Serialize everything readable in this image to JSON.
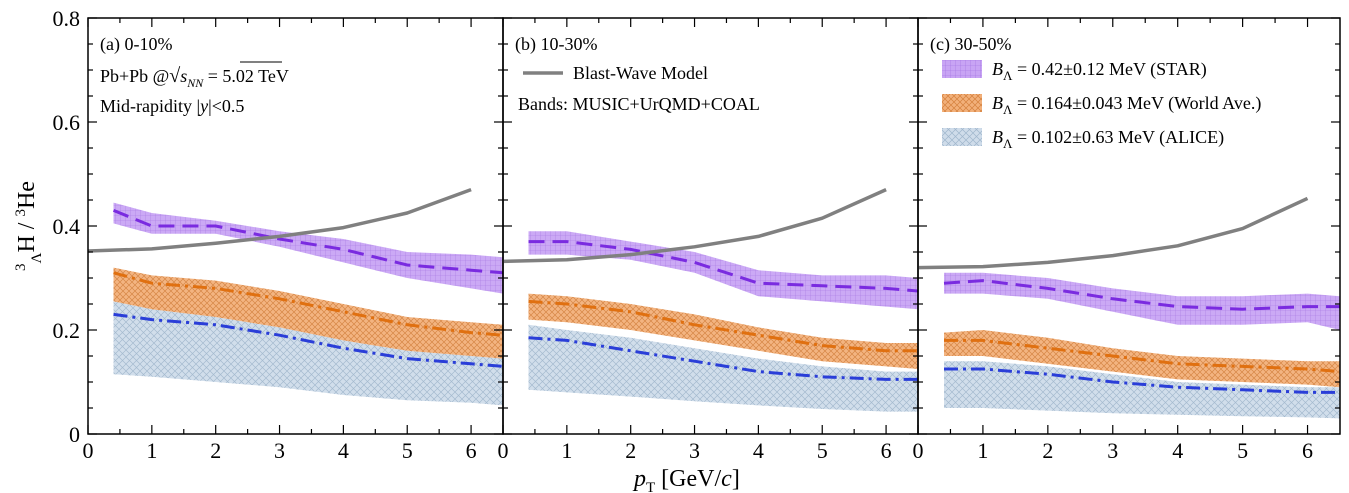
{
  "chart_data": {
    "type": "line",
    "xlabel": "p_T [GeV/c]",
    "ylabel": "3ΛH / 3He",
    "xlim": [
      0,
      6.5
    ],
    "ylim": [
      0,
      0.8
    ],
    "x_ticks": [
      0,
      1,
      2,
      3,
      4,
      5,
      6
    ],
    "y_ticks": [
      0,
      0.2,
      0.4,
      0.6,
      0.8
    ],
    "y_tick_labels": [
      "0",
      "0.2",
      "0.4",
      "0.6",
      "0.8"
    ],
    "grid": false,
    "legend_placement": "top-right",
    "annotations": {
      "system": "Pb+Pb @√sNN = 5.02 TeV",
      "system_prefix": "Pb+Pb @",
      "system_sub": "NN",
      "system_suffix": " = 5.02 TeV",
      "rapidity": "Mid-rapidity |y|<0.5",
      "rapidity_prefix": "Mid-rapidity |",
      "rapidity_y": "y",
      "rapidity_suffix": "|<0.5",
      "bands_note": "Bands: MUSIC+UrQMD+COAL",
      "blast_wave_legend": "Blast-Wave Model"
    },
    "legend": [
      {
        "label": "B_Λ = 0.42±0.12 MeV (STAR)",
        "value": " = 0.42±0.12 MeV (STAR)",
        "color": "#b98cf0"
      },
      {
        "label": "B_Λ = 0.164±0.043 MeV (World Ave.)",
        "value": " = 0.164±0.043 MeV (World Ave.)",
        "color": "#f0a060"
      },
      {
        "label": "B_Λ = 0.102±0.63 MeV (ALICE)",
        "value": " = 0.102±0.63 MeV (ALICE)",
        "color": "#b8cde0"
      }
    ],
    "colors": {
      "star": "#b98cf0",
      "star_line": "#7a2be0",
      "world": "#f0a060",
      "world_line": "#e07010",
      "alice": "#b8cde0",
      "alice_line": "#2a3ed8",
      "blast_wave": "#808080"
    },
    "panels": [
      {
        "label": "(a)  0-10%",
        "blast_wave": {
          "x": [
            0,
            1,
            2,
            3,
            4,
            5,
            6
          ],
          "y": [
            0.352,
            0.356,
            0.367,
            0.38,
            0.397,
            0.425,
            0.47
          ]
        },
        "bands": {
          "x": [
            0.4,
            1,
            2,
            3,
            4,
            5,
            6,
            6.5
          ],
          "star": {
            "center": [
              0.43,
              0.4,
              0.4,
              0.375,
              0.355,
              0.325,
              0.315,
              0.31
            ],
            "upper": [
              0.445,
              0.425,
              0.41,
              0.39,
              0.375,
              0.35,
              0.345,
              0.34
            ],
            "lower": [
              0.405,
              0.385,
              0.385,
              0.36,
              0.33,
              0.3,
              0.28,
              0.27
            ]
          },
          "world": {
            "center": [
              0.31,
              0.29,
              0.28,
              0.26,
              0.235,
              0.21,
              0.195,
              0.19
            ],
            "upper": [
              0.32,
              0.305,
              0.295,
              0.275,
              0.25,
              0.225,
              0.215,
              0.21
            ],
            "lower": [
              0.255,
              0.24,
              0.225,
              0.205,
              0.18,
              0.16,
              0.15,
              0.145
            ]
          },
          "alice": {
            "center": [
              0.23,
              0.22,
              0.21,
              0.19,
              0.165,
              0.145,
              0.135,
              0.13
            ],
            "upper": [
              0.255,
              0.24,
              0.225,
              0.205,
              0.18,
              0.16,
              0.15,
              0.145
            ],
            "lower": [
              0.115,
              0.11,
              0.1,
              0.09,
              0.075,
              0.065,
              0.06,
              0.055
            ]
          }
        }
      },
      {
        "label": "(b)  10-30%",
        "blast_wave": {
          "x": [
            0,
            1,
            2,
            3,
            4,
            5,
            6
          ],
          "y": [
            0.332,
            0.335,
            0.345,
            0.36,
            0.38,
            0.415,
            0.47
          ]
        },
        "bands": {
          "x": [
            0.4,
            1,
            2,
            3,
            4,
            5,
            6,
            6.5
          ],
          "star": {
            "center": [
              0.37,
              0.37,
              0.355,
              0.33,
              0.29,
              0.285,
              0.28,
              0.275
            ],
            "upper": [
              0.39,
              0.39,
              0.37,
              0.35,
              0.315,
              0.305,
              0.305,
              0.3
            ],
            "lower": [
              0.345,
              0.345,
              0.335,
              0.31,
              0.265,
              0.255,
              0.245,
              0.24
            ]
          },
          "world": {
            "center": [
              0.255,
              0.25,
              0.235,
              0.21,
              0.19,
              0.17,
              0.16,
              0.16
            ],
            "upper": [
              0.27,
              0.265,
              0.25,
              0.23,
              0.205,
              0.185,
              0.175,
              0.175
            ],
            "lower": [
              0.22,
              0.215,
              0.2,
              0.18,
              0.16,
              0.14,
              0.13,
              0.125
            ]
          },
          "alice": {
            "center": [
              0.185,
              0.18,
              0.16,
              0.14,
              0.12,
              0.11,
              0.105,
              0.105
            ],
            "upper": [
              0.21,
              0.2,
              0.185,
              0.165,
              0.145,
              0.13,
              0.12,
              0.12
            ],
            "lower": [
              0.085,
              0.08,
              0.072,
              0.063,
              0.055,
              0.048,
              0.043,
              0.043
            ]
          }
        }
      },
      {
        "label": "(c)  30-50%",
        "blast_wave": {
          "x": [
            0,
            1,
            2,
            3,
            4,
            5,
            6
          ],
          "y": [
            0.32,
            0.322,
            0.33,
            0.343,
            0.362,
            0.395,
            0.453
          ]
        },
        "bands": {
          "x": [
            0.4,
            1,
            2,
            3,
            4,
            5,
            6,
            6.5
          ],
          "star": {
            "center": [
              0.29,
              0.295,
              0.28,
              0.26,
              0.245,
              0.24,
              0.245,
              0.245
            ],
            "upper": [
              0.31,
              0.31,
              0.3,
              0.28,
              0.265,
              0.265,
              0.27,
              0.265
            ],
            "lower": [
              0.27,
              0.27,
              0.26,
              0.235,
              0.21,
              0.21,
              0.215,
              0.2
            ]
          },
          "world": {
            "center": [
              0.18,
              0.18,
              0.165,
              0.15,
              0.135,
              0.13,
              0.125,
              0.12
            ],
            "upper": [
              0.195,
              0.2,
              0.185,
              0.165,
              0.15,
              0.145,
              0.14,
              0.14
            ],
            "lower": [
              0.15,
              0.15,
              0.135,
              0.12,
              0.105,
              0.1,
              0.095,
              0.09
            ]
          },
          "alice": {
            "center": [
              0.125,
              0.125,
              0.115,
              0.1,
              0.09,
              0.085,
              0.08,
              0.08
            ],
            "upper": [
              0.14,
              0.14,
              0.13,
              0.115,
              0.1,
              0.095,
              0.09,
              0.09
            ],
            "lower": [
              0.05,
              0.05,
              0.045,
              0.04,
              0.037,
              0.034,
              0.032,
              0.03
            ]
          }
        }
      }
    ]
  }
}
